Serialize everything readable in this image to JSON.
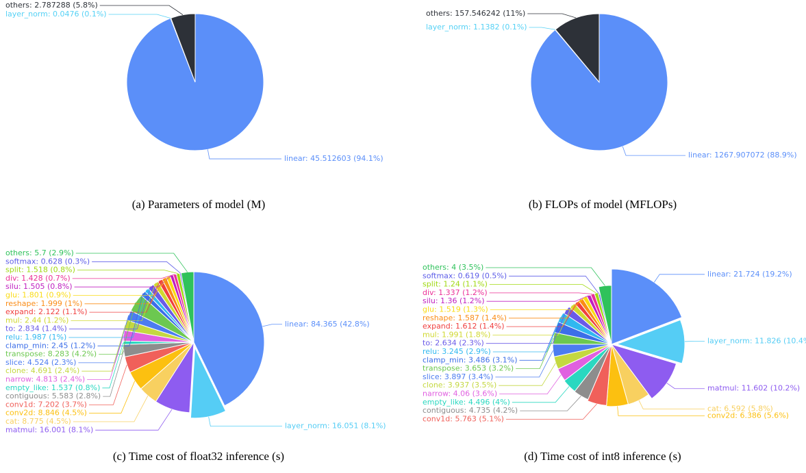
{
  "chart_data": [
    {
      "type": "pie",
      "caption": "(a)  Parameters of model (M)",
      "values": [
        45.512603,
        0.0476,
        2.787288
      ],
      "value_labels": [
        "linear: 45.512603 (94.1%)",
        "layer_norm: 0.0476 (0.1%)",
        "others: 2.787288 (5.8%)"
      ],
      "colors": [
        "#5b8ff9",
        "#55d1f5",
        "#2d3138"
      ]
    },
    {
      "type": "pie",
      "caption": "(b)  FLOPs of model (MFLOPs)",
      "values": [
        1267.907072,
        1.1382,
        157.546242
      ],
      "value_labels": [
        "linear: 1267.907072 (88.9%)",
        "layer_norm: 1.1382 (0.1%)",
        "others: 157.546242 (11%)"
      ],
      "colors": [
        "#5b8ff9",
        "#55d1f5",
        "#2d3138"
      ]
    },
    {
      "type": "pie",
      "caption": "(c)  Time cost of float32 inference (s)",
      "explode": 1,
      "values": [
        84.365,
        16.051,
        16.001,
        8.775,
        8.846,
        7.202,
        5.583,
        1.537,
        4.813,
        4.691,
        4.524,
        8.283,
        2.45,
        1.987,
        2.834,
        2.44,
        2.122,
        1.999,
        1.801,
        1.505,
        1.428,
        1.518,
        0.628,
        5.7
      ],
      "value_labels": [
        "linear: 84.365 (42.8%)",
        "layer_norm: 16.051 (8.1%)",
        "matmul: 16.001 (8.1%)",
        "cat: 8.775 (4.5%)",
        "conv2d: 8.846 (4.5%)",
        "conv1d: 7.202 (3.7%)",
        "contiguous: 5.583 (2.8%)",
        "empty_like: 1.537 (0.8%)",
        "narrow: 4.813 (2.4%)",
        "clone: 4.691 (2.4%)",
        "slice: 4.524 (2.3%)",
        "transpose: 8.283 (4.2%)",
        "clamp_min: 2.45 (1.2%)",
        "relu: 1.987 (1%)",
        "to: 2.834 (1.4%)",
        "mul: 2.44 (1.2%)",
        "expand: 2.122 (1.1%)",
        "reshape: 1.999 (1%)",
        "glu: 1.801 (0.9%)",
        "silu: 1.505 (0.8%)",
        "div: 1.428 (0.7%)",
        "split: 1.518 (0.8%)",
        "softmax: 0.628 (0.3%)",
        "others: 5.7 (2.9%)"
      ],
      "colors": [
        "#5b8ff9",
        "#55cdf5",
        "#8e5cf0",
        "#f8d060",
        "#fcc010",
        "#f0605a",
        "#8d8d8d",
        "#2ad8c0",
        "#e060e0",
        "#c4d840",
        "#4c7cf0",
        "#6cc850",
        "#3c6ee8",
        "#30b8f0",
        "#6a5ae8",
        "#d0d830",
        "#f04040",
        "#fa8c16",
        "#fadb14",
        "#c020c0",
        "#eb2f96",
        "#a0d911",
        "#5d5de8",
        "#2fc25b"
      ]
    },
    {
      "type": "pie",
      "caption": "(d)  Time cost of int8 inference (s)",
      "explode": 1,
      "rose": true,
      "values": [
        21.724,
        11.826,
        11.602,
        6.592,
        6.386,
        5.763,
        4.735,
        4.496,
        4.06,
        3.937,
        3.897,
        3.653,
        3.486,
        3.245,
        2.634,
        1.991,
        1.612,
        1.587,
        1.519,
        1.36,
        1.337,
        1.24,
        0.619,
        4
      ],
      "value_labels": [
        "linear: 21.724 (19.2%)",
        "layer_norm: 11.826 (10.4%)",
        "matmul: 11.602 (10.2%)",
        "cat: 6.592 (5.8%)",
        "conv2d: 6.386 (5.6%)",
        "conv1d: 5.763 (5.1%)",
        "contiguous: 4.735 (4.2%)",
        "empty_like: 4.496 (4%)",
        "narrow: 4.06 (3.6%)",
        "clone: 3.937 (3.5%)",
        "slice: 3.897 (3.4%)",
        "transpose: 3.653 (3.2%)",
        "clamp_min: 3.486 (3.1%)",
        "relu: 3.245 (2.9%)",
        "to: 2.634 (2.3%)",
        "mul: 1.991 (1.8%)",
        "expand: 1.612 (1.4%)",
        "reshape: 1.587 (1.4%)",
        "glu: 1.519 (1.3%)",
        "silu: 1.36 (1.2%)",
        "div: 1.337 (1.2%)",
        "split: 1.24 (1.1%)",
        "softmax: 0.619 (0.5%)",
        "others: 4 (3.5%)"
      ],
      "colors": [
        "#5b8ff9",
        "#55cdf5",
        "#8e5cf0",
        "#f8d060",
        "#fcc010",
        "#f0605a",
        "#8d8d8d",
        "#2ad8c0",
        "#e060e0",
        "#c4d840",
        "#4c7cf0",
        "#6cc850",
        "#3c6ee8",
        "#30b8f0",
        "#6a5ae8",
        "#d0d830",
        "#f04040",
        "#fa8c16",
        "#fadb14",
        "#c020c0",
        "#eb2f96",
        "#a0d911",
        "#5d5de8",
        "#2fc25b"
      ]
    }
  ]
}
